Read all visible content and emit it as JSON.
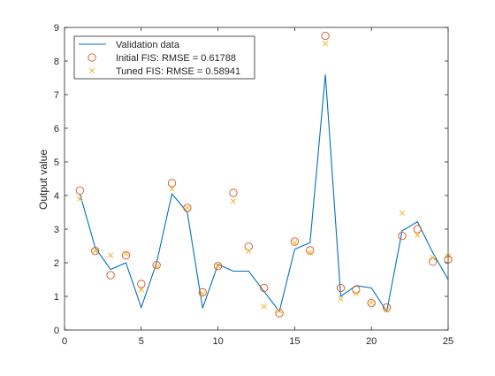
{
  "chart_data": {
    "type": "scatter",
    "title": "",
    "xlabel": "",
    "ylabel": "Output value",
    "xlim": [
      0,
      25
    ],
    "ylim": [
      0,
      9
    ],
    "xticks": [
      0,
      5,
      10,
      15,
      20,
      25
    ],
    "yticks": [
      0,
      1,
      2,
      3,
      4,
      5,
      6,
      7,
      8,
      9
    ],
    "grid": false,
    "legend_position": "top-left",
    "series": [
      {
        "name": "Validation data",
        "type": "line",
        "color": "#0072BD",
        "x": [
          1,
          2,
          3,
          4,
          5,
          6,
          7,
          8,
          9,
          10,
          11,
          12,
          13,
          14,
          15,
          16,
          17,
          18,
          19,
          20,
          21,
          22,
          23,
          24,
          25
        ],
        "y": [
          4.05,
          2.45,
          1.8,
          2.0,
          0.67,
          2.0,
          4.05,
          3.5,
          0.65,
          1.95,
          1.75,
          1.75,
          1.15,
          0.55,
          2.4,
          2.6,
          7.6,
          1.0,
          1.32,
          1.25,
          0.55,
          2.95,
          3.22,
          2.3,
          1.5
        ]
      },
      {
        "name": "Initial FIS: RMSE = 0.61788",
        "type": "scatter",
        "marker": "circle",
        "color": "#D95319",
        "x": [
          1,
          2,
          3,
          4,
          5,
          6,
          7,
          8,
          9,
          10,
          11,
          12,
          13,
          14,
          15,
          16,
          17,
          18,
          19,
          20,
          21,
          22,
          23,
          24,
          25
        ],
        "y": [
          4.15,
          2.35,
          1.63,
          2.22,
          1.37,
          1.93,
          4.37,
          3.63,
          1.12,
          1.9,
          4.08,
          2.48,
          1.25,
          0.5,
          2.63,
          2.37,
          8.75,
          1.25,
          1.2,
          0.8,
          0.67,
          2.8,
          3.0,
          2.03,
          2.1
        ]
      },
      {
        "name": "Tuned FIS: RMSE = 0.58941",
        "type": "scatter",
        "marker": "x",
        "color": "#EDB120",
        "x": [
          1,
          2,
          3,
          4,
          5,
          6,
          7,
          8,
          9,
          10,
          11,
          12,
          13,
          14,
          15,
          16,
          17,
          18,
          19,
          20,
          21,
          22,
          23,
          24,
          25
        ],
        "y": [
          3.9,
          2.35,
          2.22,
          2.28,
          1.2,
          1.88,
          4.2,
          3.63,
          1.08,
          1.9,
          3.83,
          2.35,
          0.7,
          0.57,
          2.6,
          2.3,
          8.52,
          0.92,
          1.08,
          0.82,
          0.6,
          3.48,
          2.82,
          2.15,
          2.2
        ]
      }
    ]
  }
}
